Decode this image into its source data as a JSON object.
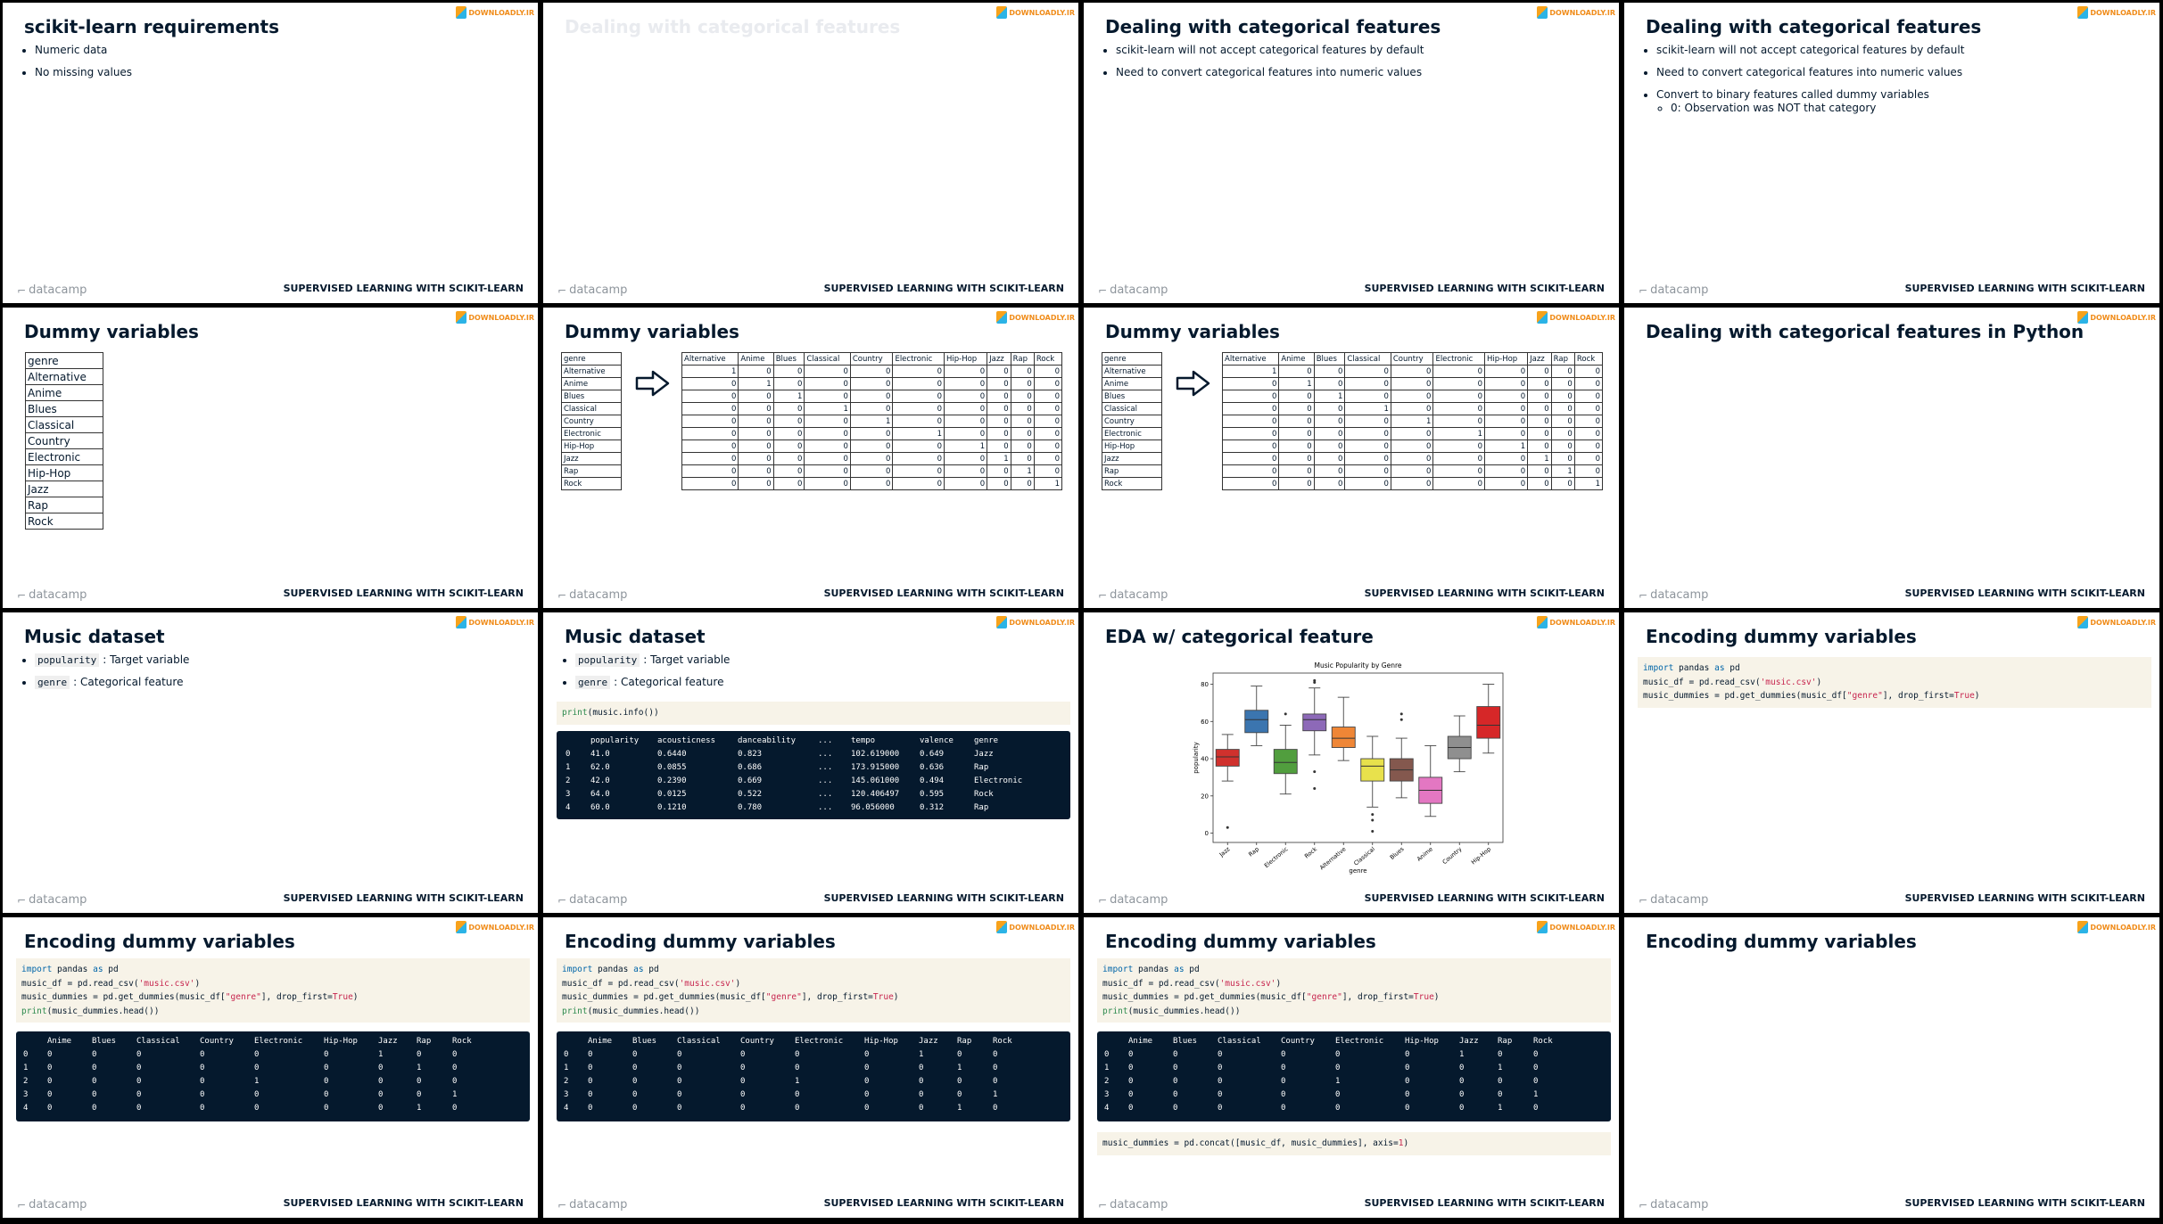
{
  "watermark": "DOWNLOADLY.IR",
  "footer": {
    "brand": "datacamp",
    "course": "SUPERVISED LEARNING WITH SCIKIT-LEARN"
  },
  "slides": [
    {
      "title": "scikit-learn requirements",
      "bullets": [
        "Numeric data",
        "No missing values"
      ]
    },
    {
      "title": "Dealing with categorical features"
    },
    {
      "title": "Dealing with categorical features",
      "bullets": [
        "scikit-learn will not accept categorical features by default",
        "Need to convert categorical features into numeric values"
      ]
    },
    {
      "title": "Dealing with categorical features",
      "bullets": [
        "scikit-learn will not accept categorical features by default",
        "Need to convert categorical features into numeric values",
        {
          "text": "Convert to binary features called dummy variables",
          "sub": [
            "0: Observation was NOT that category"
          ]
        }
      ]
    },
    {
      "title": "Dummy variables"
    },
    {
      "title": "Dummy variables"
    },
    {
      "title": "Dummy variables"
    },
    {
      "title": "Dealing with categorical features in Python"
    },
    {
      "title": "Music dataset",
      "bullets": [
        {
          "code": "popularity",
          "text": ": Target variable"
        },
        {
          "code": "genre",
          "text": ": Categorical feature"
        }
      ]
    },
    {
      "title": "Music dataset",
      "bullets": [
        {
          "code": "popularity",
          "text": ": Target variable"
        },
        {
          "code": "genre",
          "text": ": Categorical feature"
        }
      ]
    },
    {
      "title": "EDA w/ categorical feature"
    },
    {
      "title": "Encoding dummy variables"
    },
    {
      "title": "Encoding dummy variables"
    },
    {
      "title": "Encoding dummy variables"
    },
    {
      "title": "Encoding dummy variables"
    },
    {
      "title": "Encoding dummy variables"
    }
  ],
  "genre_table": {
    "header": "genre",
    "rows": [
      "Alternative",
      "Anime",
      "Blues",
      "Classical",
      "Country",
      "Electronic",
      "Hip-Hop",
      "Jazz",
      "Rap",
      "Rock"
    ]
  },
  "dummy_table": {
    "columns": [
      "Alternative",
      "Anime",
      "Blues",
      "Classical",
      "Country",
      "Electronic",
      "Hip-Hop",
      "Jazz",
      "Rap",
      "Rock"
    ],
    "rows": [
      [
        1,
        0,
        0,
        0,
        0,
        0,
        0,
        0,
        0,
        0
      ],
      [
        0,
        1,
        0,
        0,
        0,
        0,
        0,
        0,
        0,
        0
      ],
      [
        0,
        0,
        1,
        0,
        0,
        0,
        0,
        0,
        0,
        0
      ],
      [
        0,
        0,
        0,
        1,
        0,
        0,
        0,
        0,
        0,
        0
      ],
      [
        0,
        0,
        0,
        0,
        1,
        0,
        0,
        0,
        0,
        0
      ],
      [
        0,
        0,
        0,
        0,
        0,
        1,
        0,
        0,
        0,
        0
      ],
      [
        0,
        0,
        0,
        0,
        0,
        0,
        1,
        0,
        0,
        0
      ],
      [
        0,
        0,
        0,
        0,
        0,
        0,
        0,
        1,
        0,
        0
      ],
      [
        0,
        0,
        0,
        0,
        0,
        0,
        0,
        0,
        1,
        0
      ],
      [
        0,
        0,
        0,
        0,
        0,
        0,
        0,
        0,
        0,
        1
      ]
    ]
  },
  "info_code": "print(music.info())",
  "music_info": {
    "columns": [
      "popularity",
      "acousticness",
      "danceability",
      "...",
      "tempo",
      "valence",
      "genre"
    ],
    "index": [
      0,
      1,
      2,
      3,
      4
    ],
    "rows": [
      [
        "41.0",
        "0.6440",
        "0.823",
        "...",
        "102.619000",
        "0.649",
        "Jazz"
      ],
      [
        "62.0",
        "0.0855",
        "0.686",
        "...",
        "173.915000",
        "0.636",
        "Rap"
      ],
      [
        "42.0",
        "0.2390",
        "0.669",
        "...",
        "145.061000",
        "0.494",
        "Electronic"
      ],
      [
        "64.0",
        "0.0125",
        "0.522",
        "...",
        "120.406497",
        "0.595",
        "Rock"
      ],
      [
        "60.0",
        "0.1210",
        "0.780",
        "...",
        "96.056000",
        "0.312",
        "Rap"
      ]
    ]
  },
  "dummy_code": [
    "import pandas as pd",
    "music_df = pd.read_csv('music.csv')",
    "music_dummies = pd.get_dummies(music_df[\"genre\"], drop_first=True)",
    "print(music_dummies.head())"
  ],
  "dummies_output": {
    "columns": [
      "Anime",
      "Blues",
      "Classical",
      "Country",
      "Electronic",
      "Hip-Hop",
      "Jazz",
      "Rap",
      "Rock"
    ],
    "index": [
      0,
      1,
      2,
      3,
      4
    ],
    "rows": [
      [
        0,
        0,
        0,
        0,
        0,
        0,
        1,
        0,
        0
      ],
      [
        0,
        0,
        0,
        0,
        0,
        0,
        0,
        1,
        0
      ],
      [
        0,
        0,
        0,
        0,
        1,
        0,
        0,
        0,
        0
      ],
      [
        0,
        0,
        0,
        0,
        0,
        0,
        0,
        0,
        1
      ],
      [
        0,
        0,
        0,
        0,
        0,
        0,
        0,
        1,
        0
      ]
    ]
  },
  "concat_code": "music_dummies = pd.concat([music_df, music_dummies], axis=1)",
  "chart_data": {
    "type": "box",
    "title": "Music Popularity by Genre",
    "xlabel": "genre",
    "ylabel": "popularity",
    "ylim": [
      -5,
      86
    ],
    "yticks": [
      0,
      20,
      40,
      60,
      80
    ],
    "boxes": [
      {
        "name": "Jazz",
        "color": "#d0312d",
        "whislo": 28,
        "q1": 36,
        "median": 41,
        "q3": 45,
        "whishi": 53,
        "fliers": [
          3
        ]
      },
      {
        "name": "Rap",
        "color": "#3b75af",
        "whislo": 47,
        "q1": 54,
        "median": 61,
        "q3": 66,
        "whishi": 79,
        "fliers": []
      },
      {
        "name": "Electronic",
        "color": "#519e3e",
        "whislo": 21,
        "q1": 32,
        "median": 38,
        "q3": 45,
        "whishi": 58,
        "fliers": [
          64
        ]
      },
      {
        "name": "Rock",
        "color": "#8d69b8",
        "whislo": 42,
        "q1": 55,
        "median": 61,
        "q3": 64,
        "whishi": 78,
        "fliers": [
          81,
          82,
          33,
          24
        ]
      },
      {
        "name": "Alternative",
        "color": "#ef8636",
        "whislo": 39,
        "q1": 46,
        "median": 51,
        "q3": 57,
        "whishi": 73,
        "fliers": []
      },
      {
        "name": "Classical",
        "color": "#e8e14c",
        "whislo": 14,
        "q1": 28,
        "median": 36,
        "q3": 40,
        "whishi": 52,
        "fliers": [
          10,
          7,
          1
        ]
      },
      {
        "name": "Blues",
        "color": "#84584e",
        "whislo": 19,
        "q1": 28,
        "median": 34,
        "q3": 40,
        "whishi": 51,
        "fliers": [
          64,
          61
        ]
      },
      {
        "name": "Anime",
        "color": "#e377c2",
        "whislo": 9,
        "q1": 16,
        "median": 23,
        "q3": 30,
        "whishi": 47,
        "fliers": []
      },
      {
        "name": "Country",
        "color": "#8f8f8f",
        "whislo": 33,
        "q1": 40,
        "median": 46,
        "q3": 52,
        "whishi": 63,
        "fliers": []
      },
      {
        "name": "Hip-Hop",
        "color": "#d62728",
        "whislo": 43,
        "q1": 51,
        "median": 58,
        "q3": 68,
        "whishi": 80,
        "fliers": []
      }
    ]
  }
}
